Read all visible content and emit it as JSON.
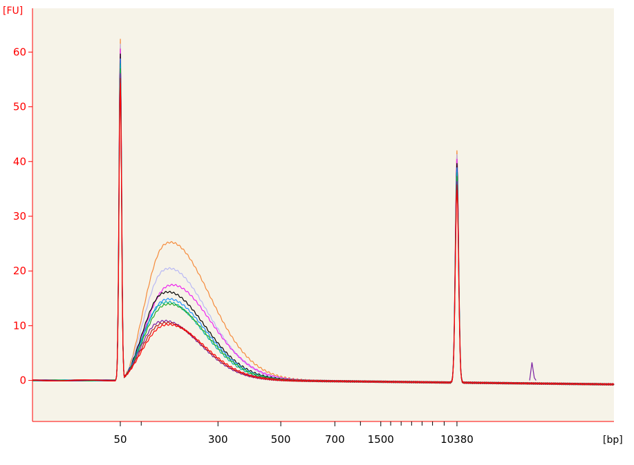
{
  "chart_data": {
    "type": "line",
    "ylabel": "[FU]",
    "xlabel": "[bp]",
    "ylim": [
      -7.5,
      68
    ],
    "y_ticks": [
      0,
      10,
      20,
      30,
      40,
      50,
      60
    ],
    "x_ticks": [
      "50",
      "300",
      "500",
      "700",
      "1500",
      "10380"
    ],
    "grid": false,
    "colors": {
      "background": "#ffffff",
      "plot_area": "#f6f3e8",
      "axis": "#ff0000",
      "y_tick_text": "#ff0000",
      "x_tick_text": "#000000"
    },
    "markers": {
      "lower_marker_bp": 50,
      "upper_marker_bp": 10380,
      "lower_marker_peak_fu": 62.5,
      "upper_marker_peak_fu": 42.5
    },
    "series": [
      {
        "color": "#f58a3a",
        "peak_fu": 27,
        "peak_x": 0.227,
        "width": 0.105
      },
      {
        "color": "#b8b8f5",
        "peak_fu": 22,
        "peak_x": 0.225,
        "width": 0.102
      },
      {
        "color": "#ee22ee",
        "peak_fu": 18.5,
        "peak_x": 0.232,
        "width": 0.102
      },
      {
        "color": "#000000",
        "peak_fu": 17.5,
        "peak_x": 0.222,
        "width": 0.1
      },
      {
        "color": "#1e90ff",
        "peak_fu": 16,
        "peak_x": 0.225,
        "width": 0.098
      },
      {
        "color": "#00b0b0",
        "peak_fu": 15.5,
        "peak_x": 0.222,
        "width": 0.097
      },
      {
        "color": "#22aa22",
        "peak_fu": 15,
        "peak_x": 0.226,
        "width": 0.097
      },
      {
        "color": "#7a1fa2",
        "peak_fu": 12,
        "peak_x": 0.215,
        "width": 0.096
      },
      {
        "color": "#b51a1a",
        "peak_fu": 11.5,
        "peak_x": 0.22,
        "width": 0.095
      },
      {
        "color": "#ff0000",
        "peak_fu": 11,
        "peak_x": 0.225,
        "width": 0.095
      }
    ]
  }
}
